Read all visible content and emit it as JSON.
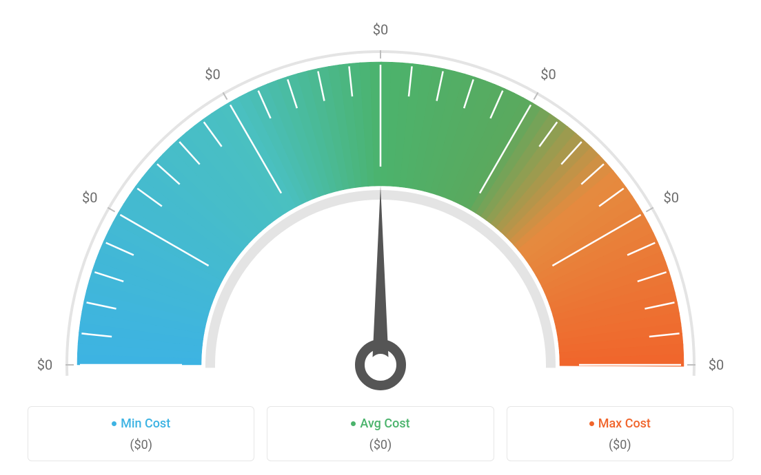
{
  "gauge": {
    "type": "gauge",
    "background_color": "#ffffff",
    "outer_ring_color": "#e4e4e4",
    "inner_ring_color": "#e4e4e4",
    "needle_color": "#555555",
    "needle_value_deg": 90,
    "tick_color": "#ffffff",
    "tick_width": 2.5,
    "label_color": "#6b6b6b",
    "label_fontsize": 20,
    "gradient_stops": [
      {
        "pct": 0,
        "color": "#3db3e3"
      },
      {
        "pct": 34,
        "color": "#4ac0c0"
      },
      {
        "pct": 50,
        "color": "#4bb36c"
      },
      {
        "pct": 66,
        "color": "#5aa95e"
      },
      {
        "pct": 78,
        "color": "#e58b3f"
      },
      {
        "pct": 100,
        "color": "#f0652c"
      }
    ],
    "major_ticks": [
      "$0",
      "$0",
      "$0",
      "$0",
      "$0",
      "$0",
      "$0"
    ],
    "minor_ticks_per_major": 4,
    "outer_radius": 455,
    "arc_outer_radius": 440,
    "arc_inner_radius": 260,
    "inner_ring_radius": 240
  },
  "legend": {
    "cards": [
      {
        "key": "min",
        "label": "Min Cost",
        "value": "($0)",
        "color": "#3db3e3"
      },
      {
        "key": "avg",
        "label": "Avg Cost",
        "value": "($0)",
        "color": "#4bb36c"
      },
      {
        "key": "max",
        "label": "Max Cost",
        "value": "($0)",
        "color": "#f0652c"
      }
    ],
    "border_color": "#e6e6e6",
    "border_radius": 6,
    "label_fontsize": 18,
    "value_color": "#6b6b6b"
  }
}
